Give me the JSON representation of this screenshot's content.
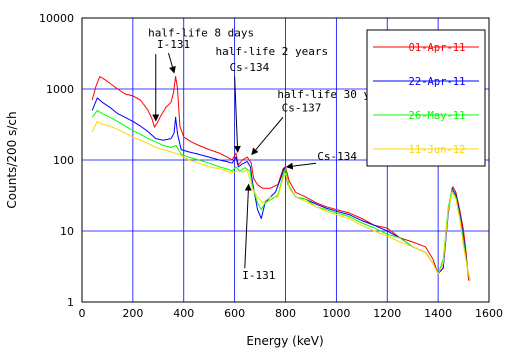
{
  "chart_data": {
    "type": "line",
    "title": "",
    "xlabel": "Energy (keV)",
    "ylabel": "Counts/200 s/ch",
    "xlim": [
      0,
      1600
    ],
    "ylim": [
      1,
      10000
    ],
    "yscale": "log",
    "grid": true,
    "legend_position": "top-right",
    "x_ticks": [
      "0",
      "200",
      "400",
      "600",
      "800",
      "1000",
      "1200",
      "1400",
      "1600"
    ],
    "y_ticks": [
      "1",
      "10",
      "100",
      "1000",
      "10000"
    ],
    "series": [
      {
        "name": "01-Apr-11",
        "color": "#ff0000",
        "points": [
          [
            40,
            700
          ],
          [
            55,
            1100
          ],
          [
            70,
            1500
          ],
          [
            90,
            1350
          ],
          [
            110,
            1200
          ],
          [
            140,
            1000
          ],
          [
            170,
            850
          ],
          [
            200,
            800
          ],
          [
            230,
            700
          ],
          [
            260,
            500
          ],
          [
            275,
            380
          ],
          [
            285,
            290
          ],
          [
            295,
            330
          ],
          [
            310,
            420
          ],
          [
            330,
            550
          ],
          [
            350,
            650
          ],
          [
            360,
            900
          ],
          [
            368,
            1500
          ],
          [
            375,
            1050
          ],
          [
            385,
            300
          ],
          [
            400,
            210
          ],
          [
            430,
            180
          ],
          [
            460,
            160
          ],
          [
            500,
            140
          ],
          [
            540,
            125
          ],
          [
            570,
            110
          ],
          [
            590,
            100
          ],
          [
            605,
            125
          ],
          [
            615,
            85
          ],
          [
            630,
            100
          ],
          [
            650,
            110
          ],
          [
            665,
            90
          ],
          [
            675,
            55
          ],
          [
            690,
            45
          ],
          [
            710,
            40
          ],
          [
            740,
            40
          ],
          [
            770,
            45
          ],
          [
            790,
            75
          ],
          [
            800,
            80
          ],
          [
            815,
            50
          ],
          [
            840,
            35
          ],
          [
            880,
            30
          ],
          [
            920,
            25
          ],
          [
            960,
            22
          ],
          [
            1000,
            20
          ],
          [
            1050,
            18
          ],
          [
            1100,
            15
          ],
          [
            1150,
            12
          ],
          [
            1200,
            11
          ],
          [
            1250,
            8
          ],
          [
            1300,
            7
          ],
          [
            1350,
            6
          ],
          [
            1380,
            4
          ],
          [
            1400,
            2.5
          ],
          [
            1420,
            3
          ],
          [
            1440,
            20
          ],
          [
            1458,
            42
          ],
          [
            1470,
            35
          ],
          [
            1485,
            20
          ],
          [
            1500,
            10
          ],
          [
            1510,
            5
          ],
          [
            1520,
            2
          ]
        ]
      },
      {
        "name": "22-Apr-11",
        "color": "#0000ff",
        "points": [
          [
            40,
            500
          ],
          [
            60,
            750
          ],
          [
            80,
            650
          ],
          [
            110,
            550
          ],
          [
            140,
            450
          ],
          [
            170,
            400
          ],
          [
            200,
            350
          ],
          [
            230,
            300
          ],
          [
            260,
            250
          ],
          [
            290,
            200
          ],
          [
            320,
            190
          ],
          [
            350,
            200
          ],
          [
            362,
            240
          ],
          [
            368,
            400
          ],
          [
            376,
            230
          ],
          [
            390,
            140
          ],
          [
            420,
            130
          ],
          [
            460,
            120
          ],
          [
            500,
            110
          ],
          [
            540,
            100
          ],
          [
            570,
            95
          ],
          [
            590,
            90
          ],
          [
            605,
            110
          ],
          [
            615,
            80
          ],
          [
            630,
            88
          ],
          [
            650,
            95
          ],
          [
            662,
            80
          ],
          [
            672,
            45
          ],
          [
            690,
            20
          ],
          [
            705,
            15
          ],
          [
            720,
            25
          ],
          [
            740,
            30
          ],
          [
            760,
            35
          ],
          [
            785,
            60
          ],
          [
            795,
            78
          ],
          [
            810,
            45
          ],
          [
            840,
            30
          ],
          [
            880,
            28
          ],
          [
            920,
            24
          ],
          [
            960,
            21
          ],
          [
            1000,
            19
          ],
          [
            1050,
            17
          ],
          [
            1100,
            14
          ],
          [
            1150,
            12
          ],
          [
            1200,
            10
          ],
          [
            1250,
            8
          ],
          [
            1300,
            6
          ],
          [
            1350,
            5
          ],
          [
            1380,
            3.5
          ],
          [
            1400,
            2.5
          ],
          [
            1420,
            3
          ],
          [
            1440,
            18
          ],
          [
            1455,
            40
          ],
          [
            1470,
            32
          ],
          [
            1485,
            18
          ],
          [
            1500,
            8
          ],
          [
            1515,
            3
          ],
          [
            1525,
            2
          ]
        ]
      },
      {
        "name": "26-May-11",
        "color": "#00ff00",
        "points": [
          [
            40,
            400
          ],
          [
            60,
            500
          ],
          [
            80,
            450
          ],
          [
            110,
            400
          ],
          [
            140,
            350
          ],
          [
            170,
            300
          ],
          [
            200,
            260
          ],
          [
            230,
            230
          ],
          [
            260,
            200
          ],
          [
            290,
            180
          ],
          [
            320,
            160
          ],
          [
            350,
            150
          ],
          [
            370,
            160
          ],
          [
            390,
            120
          ],
          [
            420,
            110
          ],
          [
            460,
            100
          ],
          [
            500,
            90
          ],
          [
            540,
            80
          ],
          [
            570,
            75
          ],
          [
            590,
            70
          ],
          [
            605,
            80
          ],
          [
            620,
            70
          ],
          [
            640,
            78
          ],
          [
            660,
            70
          ],
          [
            672,
            40
          ],
          [
            690,
            25
          ],
          [
            705,
            20
          ],
          [
            720,
            25
          ],
          [
            745,
            28
          ],
          [
            770,
            32
          ],
          [
            790,
            60
          ],
          [
            800,
            75
          ],
          [
            815,
            42
          ],
          [
            840,
            30
          ],
          [
            880,
            28
          ],
          [
            920,
            22
          ],
          [
            960,
            20
          ],
          [
            1000,
            18
          ],
          [
            1050,
            16
          ],
          [
            1100,
            13
          ],
          [
            1150,
            11
          ],
          [
            1200,
            9
          ],
          [
            1250,
            8
          ],
          [
            1300,
            6
          ],
          [
            1350,
            5
          ],
          [
            1380,
            3.5
          ],
          [
            1400,
            2.5
          ],
          [
            1420,
            4
          ],
          [
            1440,
            22
          ],
          [
            1455,
            38
          ],
          [
            1470,
            30
          ],
          [
            1485,
            16
          ],
          [
            1500,
            7
          ],
          [
            1515,
            3
          ],
          [
            1525,
            2
          ]
        ]
      },
      {
        "name": "11-Jun-12",
        "color": "#ffd700",
        "points": [
          [
            40,
            250
          ],
          [
            60,
            350
          ],
          [
            80,
            320
          ],
          [
            110,
            300
          ],
          [
            140,
            270
          ],
          [
            170,
            240
          ],
          [
            200,
            210
          ],
          [
            230,
            190
          ],
          [
            260,
            170
          ],
          [
            290,
            150
          ],
          [
            320,
            140
          ],
          [
            350,
            130
          ],
          [
            380,
            120
          ],
          [
            420,
            100
          ],
          [
            460,
            90
          ],
          [
            500,
            80
          ],
          [
            540,
            75
          ],
          [
            570,
            70
          ],
          [
            590,
            65
          ],
          [
            610,
            70
          ],
          [
            630,
            68
          ],
          [
            650,
            72
          ],
          [
            670,
            40
          ],
          [
            690,
            30
          ],
          [
            710,
            25
          ],
          [
            740,
            30
          ],
          [
            770,
            30
          ],
          [
            790,
            55
          ],
          [
            800,
            65
          ],
          [
            815,
            40
          ],
          [
            840,
            30
          ],
          [
            880,
            26
          ],
          [
            920,
            22
          ],
          [
            960,
            19
          ],
          [
            1000,
            17
          ],
          [
            1050,
            15
          ],
          [
            1100,
            12
          ],
          [
            1150,
            10
          ],
          [
            1200,
            8.5
          ],
          [
            1250,
            7
          ],
          [
            1300,
            6
          ],
          [
            1350,
            5
          ],
          [
            1380,
            3.5
          ],
          [
            1400,
            2.5
          ],
          [
            1420,
            3.5
          ],
          [
            1440,
            20
          ],
          [
            1455,
            35
          ],
          [
            1470,
            28
          ],
          [
            1485,
            15
          ],
          [
            1500,
            6
          ],
          [
            1515,
            3
          ],
          [
            1525,
            2
          ]
        ]
      }
    ],
    "annotations": [
      {
        "text": "half-life 8 days",
        "x": 260,
        "y": 5500
      },
      {
        "text": "I-131",
        "x": 295,
        "y": 3800
      },
      {
        "text": "half-life 2 years",
        "x": 525,
        "y": 3000
      },
      {
        "text": "Cs-134",
        "x": 580,
        "y": 1800
      },
      {
        "text": "half-life 30 years",
        "x": 768,
        "y": 750
      },
      {
        "text": "Cs-137",
        "x": 785,
        "y": 480
      },
      {
        "text": "Cs-134",
        "x": 925,
        "y": 100
      },
      {
        "text": "I-131",
        "x": 630,
        "y": 2.1
      }
    ],
    "arrows": [
      {
        "from": [
          340,
          3200
        ],
        "to": [
          362,
          1700
        ]
      },
      {
        "from": [
          290,
          3100
        ],
        "to": [
          290,
          360
        ]
      },
      {
        "from": [
          600,
          1500
        ],
        "to": [
          612,
          130
        ]
      },
      {
        "from": [
          790,
          400
        ],
        "to": [
          668,
          120
        ]
      },
      {
        "from": [
          920,
          90
        ],
        "to": [
          805,
          80
        ]
      },
      {
        "from": [
          640,
          3.0
        ],
        "to": [
          655,
          45
        ]
      }
    ]
  }
}
